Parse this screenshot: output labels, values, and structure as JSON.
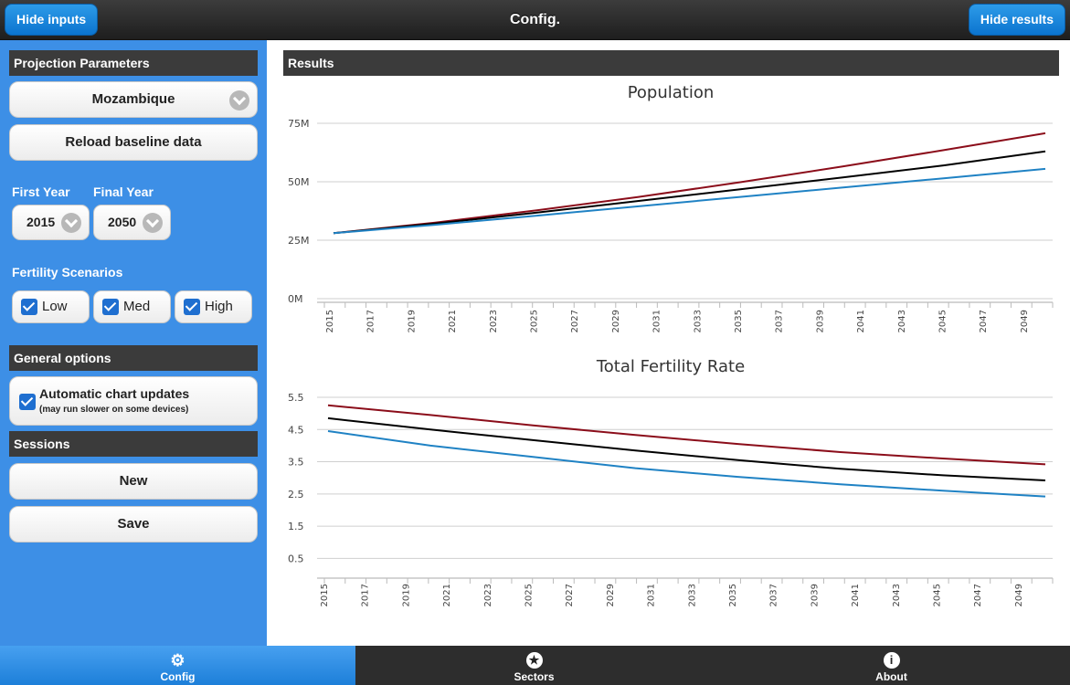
{
  "header": {
    "title": "Config.",
    "hide_inputs_label": "Hide inputs",
    "hide_results_label": "Hide results"
  },
  "sidebar": {
    "projection_title": "Projection Parameters",
    "country": "Mozambique",
    "reload_label": "Reload baseline data",
    "first_year_label": "First Year",
    "final_year_label": "Final Year",
    "first_year": "2015",
    "final_year": "2050",
    "fertility_label": "Fertility Scenarios",
    "scenarios": [
      {
        "label": "Low",
        "checked": true
      },
      {
        "label": "Med",
        "checked": true
      },
      {
        "label": "High",
        "checked": true
      }
    ],
    "general_title": "General options",
    "auto_update_label": "Automatic chart updates",
    "auto_update_note": "(may run slower on some devices)",
    "auto_update_checked": true,
    "sessions_title": "Sessions",
    "new_label": "New",
    "save_label": "Save"
  },
  "main": {
    "results_title": "Results"
  },
  "footer": {
    "tabs": [
      {
        "label": "Config",
        "icon": "gear-icon",
        "active": true
      },
      {
        "label": "Sectors",
        "icon": "star-icon",
        "active": false
      },
      {
        "label": "About",
        "icon": "info-icon",
        "active": false
      }
    ]
  },
  "colors": {
    "high": "#8b0d1a",
    "med": "#000000",
    "low": "#1f82c4",
    "accent": "#3d8fe6"
  },
  "chart_data": [
    {
      "type": "line",
      "title": "Population",
      "x": [
        2015,
        2020,
        2025,
        2030,
        2035,
        2040,
        2045,
        2050
      ],
      "x_ticks": [
        "2015",
        "2017",
        "2019",
        "2021",
        "2023",
        "2025",
        "2027",
        "2029",
        "2031",
        "2033",
        "2035",
        "2037",
        "2039",
        "2041",
        "2043",
        "2045",
        "2047",
        "2049"
      ],
      "y_ticks": [
        "0M",
        "25M",
        "50M",
        "75M"
      ],
      "ylim": [
        0,
        75
      ],
      "series": [
        {
          "key": "high",
          "values": [
            28,
            32.5,
            37.8,
            43.5,
            49.8,
            56.5,
            63.5,
            70.8
          ]
        },
        {
          "key": "med",
          "values": [
            28,
            32.1,
            36.8,
            41.8,
            46.8,
            51.8,
            57.0,
            63.0
          ]
        },
        {
          "key": "low",
          "values": [
            28,
            31.6,
            35.5,
            39.5,
            43.5,
            47.5,
            51.5,
            55.5
          ]
        }
      ]
    },
    {
      "type": "line",
      "title": "Total Fertility Rate",
      "x": [
        2015,
        2020,
        2025,
        2030,
        2035,
        2040,
        2045,
        2050
      ],
      "x_ticks": [
        "2015",
        "2017",
        "2019",
        "2021",
        "2023",
        "2025",
        "2027",
        "2029",
        "2031",
        "2033",
        "2035",
        "2037",
        "2039",
        "2041",
        "2043",
        "2045",
        "2047",
        "2049"
      ],
      "y_ticks": [
        "0.5",
        "1.5",
        "2.5",
        "3.5",
        "4.5",
        "5.5"
      ],
      "ylim": [
        0,
        5.5
      ],
      "series": [
        {
          "key": "high",
          "values": [
            5.25,
            4.95,
            4.63,
            4.33,
            4.05,
            3.8,
            3.6,
            3.42
          ]
        },
        {
          "key": "med",
          "values": [
            4.85,
            4.5,
            4.17,
            3.85,
            3.55,
            3.28,
            3.08,
            2.92
          ]
        },
        {
          "key": "low",
          "values": [
            4.45,
            4.0,
            3.65,
            3.3,
            3.03,
            2.8,
            2.6,
            2.42
          ]
        }
      ]
    }
  ]
}
